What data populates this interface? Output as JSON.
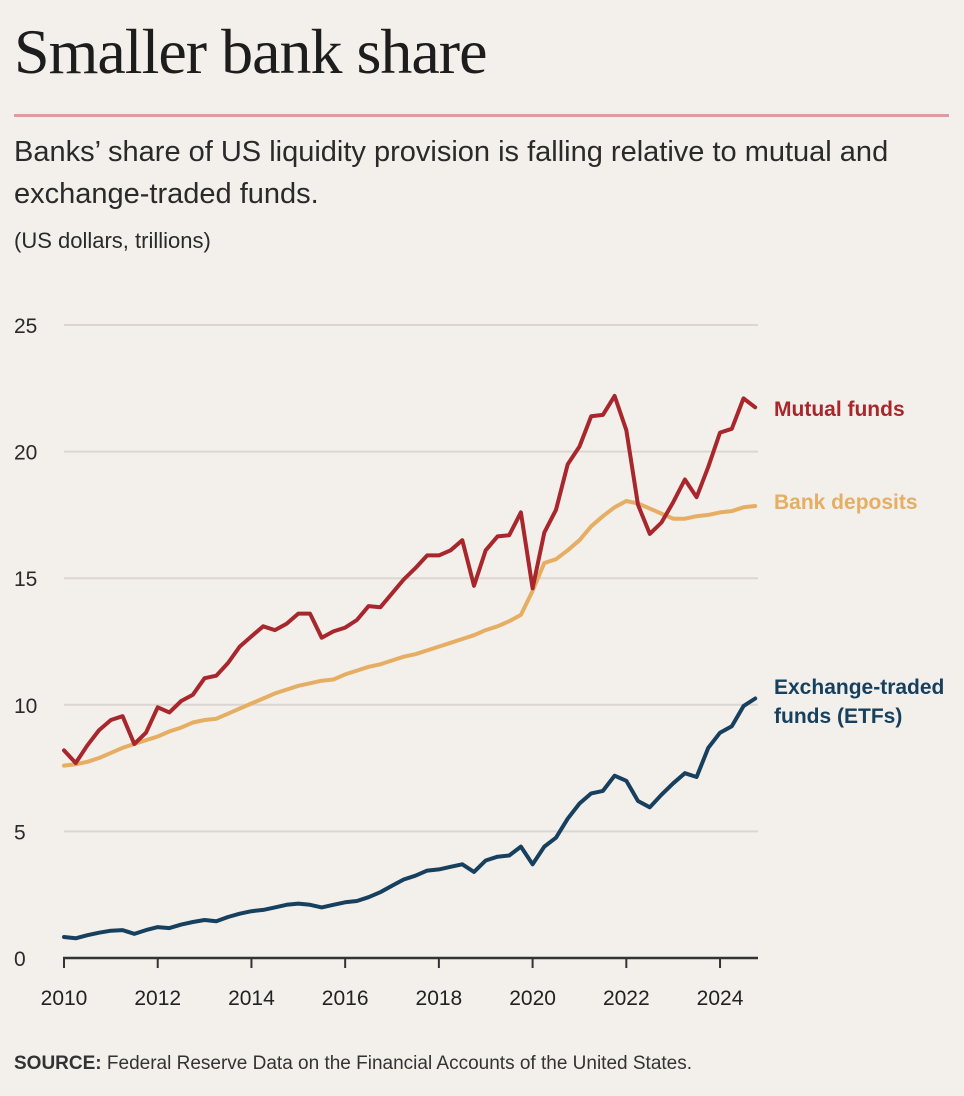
{
  "header": {
    "title": "Smaller bank share",
    "subtitle": "Banks’ share of US liquidity provision is falling relative to mutual and exchange-traded funds.",
    "units": "(US dollars, trillions)"
  },
  "footer": {
    "source_label": "SOURCE:",
    "source_text": " Federal Reserve Data on the Financial Accounts of the United States."
  },
  "colors": {
    "mutual_funds": "#a8272d",
    "bank_deposits": "#e5ae63",
    "etfs": "#17405e",
    "grid": "#dcd6d2",
    "axis": "#333333",
    "rule": "#e29a9c"
  },
  "chart_data": {
    "type": "line",
    "title": "Smaller bank share",
    "subtitle": "Banks’ share of US liquidity provision is falling relative to mutual and exchange-traded funds.",
    "ylabel": "US dollars, trillions",
    "xlabel": "",
    "xlim": [
      2010,
      2024.9
    ],
    "ylim": [
      0,
      25
    ],
    "yticks": [
      0,
      5,
      10,
      15,
      20,
      25
    ],
    "xticks": [
      2010,
      2012,
      2014,
      2016,
      2018,
      2020,
      2022,
      2024
    ],
    "grid": true,
    "legend": "direct labels at right",
    "x_start": 2010,
    "x_step": 0.25,
    "series": [
      {
        "name": "Mutual funds",
        "label_lines": [
          "Mutual funds"
        ],
        "color": "#a8272d",
        "values": [
          8.2,
          7.7,
          8.4,
          9.0,
          9.4,
          9.55,
          8.45,
          8.9,
          9.9,
          9.7,
          10.15,
          10.4,
          11.05,
          11.15,
          11.65,
          12.3,
          12.7,
          13.1,
          12.95,
          13.2,
          13.6,
          13.6,
          12.65,
          12.9,
          13.05,
          13.35,
          13.9,
          13.85,
          14.4,
          14.95,
          15.4,
          15.9,
          15.9,
          16.1,
          16.5,
          14.7,
          16.1,
          16.65,
          16.7,
          17.6,
          14.6,
          16.8,
          17.7,
          19.5,
          20.2,
          21.4,
          21.45,
          22.2,
          20.85,
          17.9,
          16.75,
          17.2,
          18.0,
          18.9,
          18.2,
          19.4,
          20.75,
          20.9,
          22.1,
          21.75
        ]
      },
      {
        "name": "Bank deposits",
        "label_lines": [
          "Bank deposits"
        ],
        "color": "#e5ae63",
        "values": [
          7.6,
          7.65,
          7.75,
          7.9,
          8.1,
          8.3,
          8.45,
          8.6,
          8.75,
          8.95,
          9.1,
          9.3,
          9.4,
          9.45,
          9.65,
          9.85,
          10.05,
          10.25,
          10.45,
          10.6,
          10.75,
          10.85,
          10.95,
          11.0,
          11.2,
          11.35,
          11.5,
          11.6,
          11.75,
          11.9,
          12.0,
          12.15,
          12.3,
          12.45,
          12.6,
          12.75,
          12.95,
          13.1,
          13.3,
          13.55,
          14.5,
          15.6,
          15.75,
          16.1,
          16.5,
          17.05,
          17.45,
          17.8,
          18.05,
          17.95,
          17.75,
          17.55,
          17.35,
          17.35,
          17.45,
          17.5,
          17.6,
          17.65,
          17.8,
          17.85
        ]
      },
      {
        "name": "Exchange-traded funds (ETFs)",
        "label_lines": [
          "Exchange-traded",
          "funds (ETFs)"
        ],
        "color": "#17405e",
        "values": [
          0.83,
          0.78,
          0.9,
          1.0,
          1.08,
          1.1,
          0.95,
          1.1,
          1.22,
          1.18,
          1.32,
          1.42,
          1.5,
          1.45,
          1.62,
          1.75,
          1.85,
          1.9,
          2.0,
          2.1,
          2.15,
          2.1,
          2.0,
          2.1,
          2.2,
          2.25,
          2.4,
          2.6,
          2.85,
          3.1,
          3.25,
          3.45,
          3.5,
          3.6,
          3.7,
          3.4,
          3.85,
          4.0,
          4.05,
          4.4,
          3.7,
          4.4,
          4.75,
          5.5,
          6.1,
          6.5,
          6.6,
          7.2,
          7.0,
          6.2,
          5.95,
          6.45,
          6.9,
          7.3,
          7.15,
          8.3,
          8.9,
          9.15,
          9.95,
          10.25
        ]
      }
    ]
  }
}
